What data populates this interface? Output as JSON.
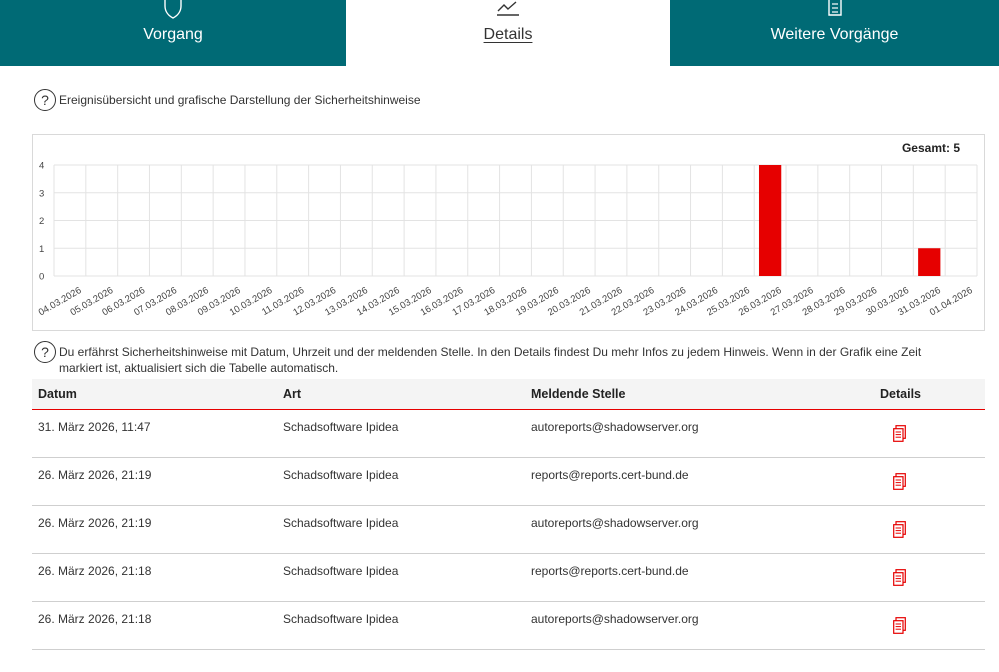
{
  "tabs": [
    {
      "label": "Vorgang",
      "icon": "shield-icon"
    },
    {
      "label": "Details",
      "icon": "chart-line-icon",
      "active": true
    },
    {
      "label": "Weitere Vorgänge",
      "icon": "document-icon"
    }
  ],
  "help_chart": "Ereignisübersicht und grafische Darstellung der Sicherheitshinweise",
  "help_table": "Du erfährst Sicherheitshinweise mit Datum, Uhrzeit und der meldenden Stelle. In den Details findest Du mehr Infos zu jedem Hinweis. Wenn in der Grafik eine Zeit markiert ist, aktualisiert sich die Tabelle automatisch.",
  "help_icon_glyph": "?",
  "chart": {
    "total_label": "Gesamt: 5"
  },
  "chart_data": {
    "type": "bar",
    "categories": [
      "04.03.2026",
      "05.03.2026",
      "06.03.2026",
      "07.03.2026",
      "08.03.2026",
      "09.03.2026",
      "10.03.2026",
      "11.03.2026",
      "12.03.2026",
      "13.03.2026",
      "14.03.2026",
      "15.03.2026",
      "16.03.2026",
      "17.03.2026",
      "18.03.2026",
      "19.03.2026",
      "20.03.2026",
      "21.03.2026",
      "22.03.2026",
      "23.03.2026",
      "24.03.2026",
      "25.03.2026",
      "26.03.2026",
      "27.03.2026",
      "28.03.2026",
      "29.03.2026",
      "30.03.2026",
      "31.03.2026",
      "01.04.2026"
    ],
    "values": [
      0,
      0,
      0,
      0,
      0,
      0,
      0,
      0,
      0,
      0,
      0,
      0,
      0,
      0,
      0,
      0,
      0,
      0,
      0,
      0,
      0,
      0,
      4,
      0,
      0,
      0,
      0,
      1,
      0
    ],
    "yticks": [
      "0",
      "1",
      "2",
      "3",
      "4"
    ],
    "ylim": [
      0,
      4
    ],
    "grid": true,
    "bar_color": "#e60000"
  },
  "table": {
    "headers": [
      "Datum",
      "Art",
      "Meldende Stelle",
      "Details"
    ],
    "rows": [
      {
        "datum": "31. März 2026, 11:47",
        "art": "Schadsoftware Ipidea",
        "stelle": "autoreports@shadowserver.org"
      },
      {
        "datum": "26. März 2026, 21:19",
        "art": "Schadsoftware Ipidea",
        "stelle": "reports@reports.cert-bund.de"
      },
      {
        "datum": "26. März 2026, 21:19",
        "art": "Schadsoftware Ipidea",
        "stelle": "autoreports@shadowserver.org"
      },
      {
        "datum": "26. März 2026, 21:18",
        "art": "Schadsoftware Ipidea",
        "stelle": "reports@reports.cert-bund.de"
      },
      {
        "datum": "26. März 2026, 21:18",
        "art": "Schadsoftware Ipidea",
        "stelle": "autoreports@shadowserver.org"
      }
    ],
    "details_icon": "document-copy-icon"
  },
  "colors": {
    "teal": "#006a75",
    "accent": "#e60000"
  }
}
